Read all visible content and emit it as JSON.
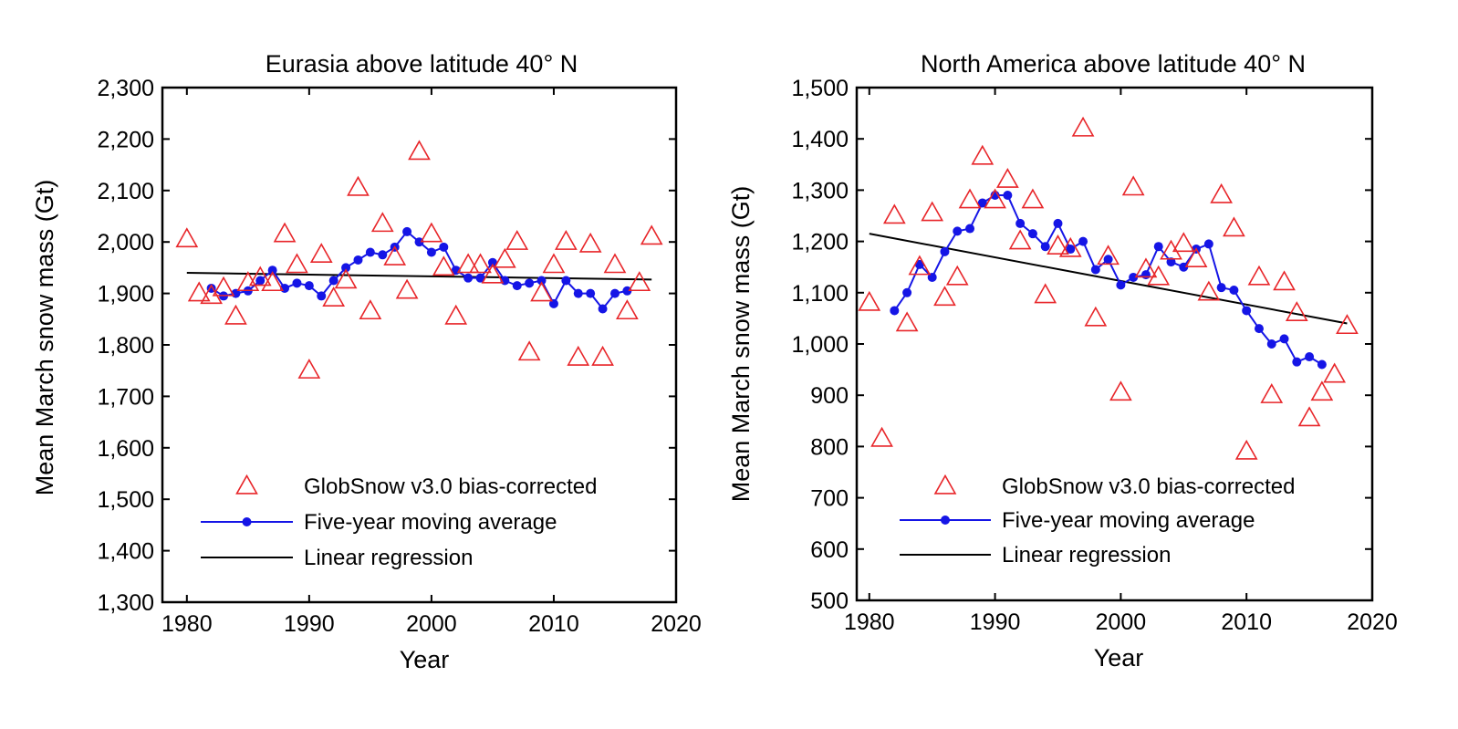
{
  "chart_data": [
    {
      "type": "scatter",
      "title": "Eurasia above latitude 40° N",
      "xlabel": "Year",
      "ylabel": "Mean March snow mass (Gt)",
      "xlim": [
        1978,
        2020
      ],
      "ylim": [
        1300,
        2300
      ],
      "xticks": [
        "1980",
        "1990",
        "2000",
        "2010",
        "2020"
      ],
      "yticks": [
        "1,300",
        "1,400",
        "1,500",
        "1,600",
        "1,700",
        "1,800",
        "1,900",
        "2,000",
        "2,100",
        "2,200",
        "2,300"
      ],
      "legend_position": "bottom-left",
      "colors": {
        "scatter": "#e8262a",
        "moving": "#1515e6",
        "regression": "#000000"
      },
      "series": [
        {
          "name": "GlobSnow v3.0 bias-corrected",
          "kind": "scatter",
          "x": [
            1980,
            1981,
            1982,
            1983,
            1984,
            1985,
            1986,
            1987,
            1988,
            1989,
            1990,
            1991,
            1992,
            1993,
            1994,
            1995,
            1996,
            1997,
            1998,
            1999,
            2000,
            2001,
            2002,
            2003,
            2004,
            2005,
            2006,
            2007,
            2008,
            2009,
            2010,
            2011,
            2012,
            2013,
            2014,
            2015,
            2016,
            2017,
            2018
          ],
          "y": [
            2005,
            1900,
            1895,
            1910,
            1855,
            1920,
            1930,
            1920,
            2015,
            1955,
            1750,
            1975,
            1890,
            1925,
            2105,
            1865,
            2035,
            1970,
            1905,
            2175,
            2015,
            1950,
            1855,
            1955,
            1955,
            1935,
            1965,
            2000,
            1785,
            1900,
            1955,
            2000,
            1775,
            1995,
            1775,
            1955,
            1865,
            1920,
            2010
          ]
        },
        {
          "name": "Five-year moving average",
          "kind": "line-markers",
          "x": [
            1982,
            1983,
            1984,
            1985,
            1986,
            1987,
            1988,
            1989,
            1990,
            1991,
            1992,
            1993,
            1994,
            1995,
            1996,
            1997,
            1998,
            1999,
            2000,
            2001,
            2002,
            2003,
            2004,
            2005,
            2006,
            2007,
            2008,
            2009,
            2010,
            2011,
            2012,
            2013,
            2014,
            2015,
            2016
          ],
          "y": [
            1910,
            1895,
            1900,
            1905,
            1925,
            1945,
            1910,
            1920,
            1915,
            1895,
            1925,
            1950,
            1965,
            1980,
            1975,
            1990,
            2020,
            2000,
            1980,
            1990,
            1945,
            1930,
            1930,
            1960,
            1925,
            1915,
            1920,
            1925,
            1880,
            1925,
            1900,
            1900,
            1870,
            1900,
            1905
          ]
        },
        {
          "name": "Linear regression",
          "kind": "line",
          "x": [
            1980,
            2018
          ],
          "y": [
            1940,
            1927
          ]
        }
      ]
    },
    {
      "type": "scatter",
      "title": "North America above latitude 40° N",
      "xlabel": "Year",
      "ylabel": "Mean March snow mass (Gt)",
      "xlim": [
        1979,
        2020
      ],
      "ylim": [
        500,
        1500
      ],
      "xticks": [
        "1980",
        "1990",
        "2000",
        "2010",
        "2020"
      ],
      "yticks": [
        "500",
        "600",
        "700",
        "800",
        "900",
        "1,000",
        "1,100",
        "1,200",
        "1,300",
        "1,400",
        "1,500"
      ],
      "legend_position": "bottom-left",
      "colors": {
        "scatter": "#e8262a",
        "moving": "#1515e6",
        "regression": "#000000"
      },
      "series": [
        {
          "name": "GlobSnow v3.0 bias-corrected",
          "kind": "scatter",
          "x": [
            1980,
            1981,
            1982,
            1983,
            1984,
            1985,
            1986,
            1987,
            1988,
            1989,
            1990,
            1991,
            1992,
            1993,
            1994,
            1995,
            1996,
            1997,
            1998,
            1999,
            2000,
            2001,
            2002,
            2003,
            2004,
            2005,
            2006,
            2007,
            2008,
            2009,
            2010,
            2011,
            2012,
            2013,
            2014,
            2015,
            2016,
            2017,
            2018
          ],
          "y": [
            1080,
            815,
            1250,
            1040,
            1150,
            1255,
            1090,
            1130,
            1280,
            1365,
            1280,
            1320,
            1200,
            1280,
            1095,
            1190,
            1185,
            1420,
            1050,
            1170,
            905,
            1305,
            1145,
            1130,
            1180,
            1195,
            1165,
            1100,
            1290,
            1225,
            790,
            1130,
            900,
            1120,
            1060,
            855,
            905,
            940,
            1035
          ]
        },
        {
          "name": "Five-year moving average",
          "kind": "line-markers",
          "x": [
            1982,
            1983,
            1984,
            1985,
            1986,
            1987,
            1988,
            1989,
            1990,
            1991,
            1992,
            1993,
            1994,
            1995,
            1996,
            1997,
            1998,
            1999,
            2000,
            2001,
            2002,
            2003,
            2004,
            2005,
            2006,
            2007,
            2008,
            2009,
            2010,
            2011,
            2012,
            2013,
            2014,
            2015,
            2016
          ],
          "y": [
            1065,
            1100,
            1155,
            1130,
            1180,
            1220,
            1225,
            1275,
            1290,
            1290,
            1235,
            1215,
            1190,
            1235,
            1185,
            1200,
            1145,
            1165,
            1115,
            1130,
            1135,
            1190,
            1160,
            1150,
            1185,
            1195,
            1110,
            1105,
            1065,
            1030,
            1000,
            1010,
            965,
            975,
            960
          ]
        },
        {
          "name": "Linear regression",
          "kind": "line",
          "x": [
            1980,
            2018
          ],
          "y": [
            1215,
            1040
          ]
        }
      ]
    }
  ]
}
